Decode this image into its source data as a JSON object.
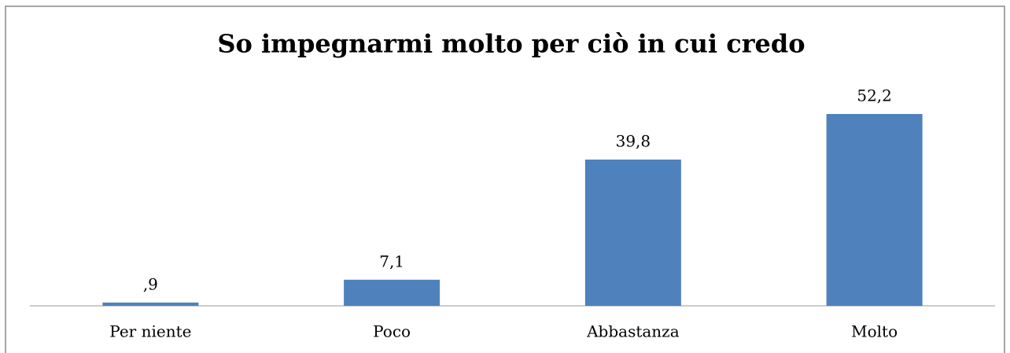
{
  "chart_data": {
    "type": "bar",
    "title": "So impegnarmi molto per ciò in cui credo",
    "categories": [
      "Per niente",
      "Poco",
      "Abbastanza",
      "Molto"
    ],
    "values": [
      0.9,
      7.1,
      39.8,
      52.2
    ],
    "value_labels": [
      ",9",
      "7,1",
      "39,8",
      "52,2"
    ],
    "color": "#4f81bd"
  }
}
